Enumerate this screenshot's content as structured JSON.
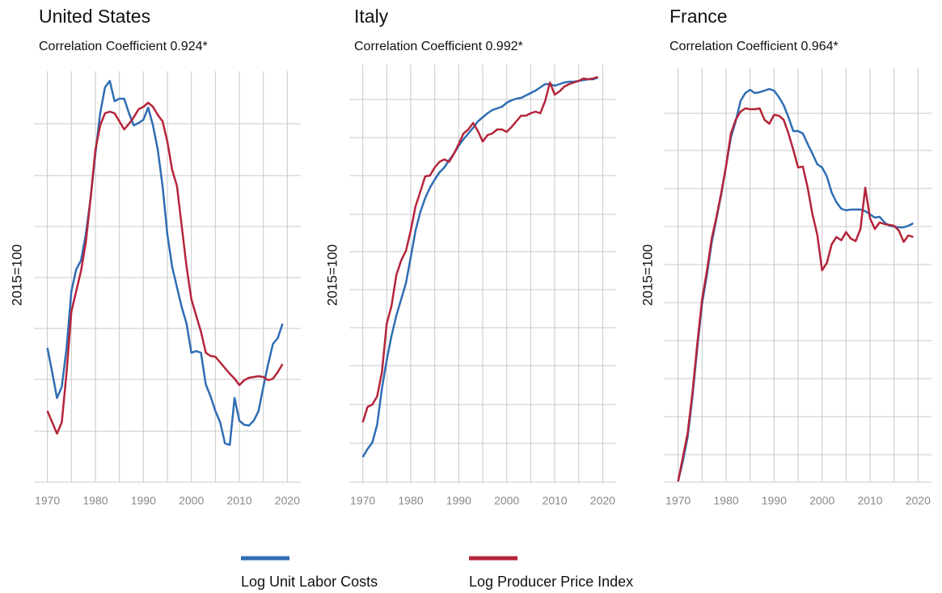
{
  "chart_data": [
    {
      "type": "line",
      "title": "United States",
      "subtitle": "Correlation Coefficient 0.924*",
      "y_label": "2015=100",
      "x": [
        1970,
        1971,
        1972,
        1973,
        1974,
        1975,
        1976,
        1977,
        1978,
        1979,
        1980,
        1981,
        1982,
        1983,
        1984,
        1985,
        1986,
        1987,
        1988,
        1989,
        1990,
        1991,
        1992,
        1993,
        1994,
        1995,
        1996,
        1997,
        1998,
        1999,
        2000,
        2001,
        2002,
        2003,
        2004,
        2005,
        2006,
        2007,
        2008,
        2009,
        2010,
        2011,
        2012,
        2013,
        2014,
        2015,
        2016,
        2017,
        2018,
        2019
      ],
      "series": [
        {
          "name": "Log Unit Labor Costs",
          "color": "#2e6db4",
          "values": [
            166,
            136,
            104,
            118,
            166,
            236,
            263,
            274,
            306,
            351,
            406,
            456,
            488,
            496,
            471,
            474,
            474,
            456,
            441,
            444,
            448,
            463,
            441,
            411,
            366,
            306,
            266,
            241,
            216,
            196,
            160,
            162,
            160,
            121,
            106,
            88,
            74,
            48,
            46,
            104,
            76,
            71,
            70,
            76,
            88,
            118,
            146,
            171,
            178,
            196
          ]
        },
        {
          "name": "Log Producer Price Index",
          "color": "#b5243a",
          "values": [
            88,
            74,
            60,
            74,
            136,
            211,
            236,
            261,
            296,
            351,
            411,
            441,
            456,
            458,
            456,
            446,
            436,
            443,
            451,
            461,
            464,
            469,
            464,
            454,
            446,
            421,
            386,
            366,
            316,
            266,
            226,
            206,
            186,
            160,
            156,
            155,
            148,
            141,
            134,
            128,
            120,
            126,
            129,
            130,
            131,
            130,
            126,
            128,
            136,
            146
          ]
        }
      ],
      "xlim": [
        1967.2,
        2022.8
      ],
      "xticks": [
        1970,
        1980,
        1990,
        2000,
        2010,
        2020
      ],
      "xgrid": [
        1970,
        1975,
        1980,
        1985,
        1990,
        1995,
        2000,
        2005,
        2010,
        2015,
        2020
      ],
      "ylim": [
        0,
        508
      ],
      "yticks": [
        0,
        63,
        127,
        190,
        253,
        316,
        379,
        443
      ],
      "grid": true
    },
    {
      "type": "line",
      "title": "Italy",
      "subtitle": "Correlation Coefficient 0.992*",
      "y_label": "2015=100",
      "x": [
        1970,
        1971,
        1972,
        1973,
        1974,
        1975,
        1976,
        1977,
        1978,
        1979,
        1980,
        1981,
        1982,
        1983,
        1984,
        1985,
        1986,
        1987,
        1988,
        1989,
        1990,
        1991,
        1992,
        1993,
        1994,
        1995,
        1996,
        1997,
        1998,
        1999,
        2000,
        2001,
        2002,
        2003,
        2004,
        2005,
        2006,
        2007,
        2008,
        2009,
        2010,
        2011,
        2012,
        2013,
        2014,
        2015,
        2016,
        2017,
        2018,
        2019
      ],
      "series": [
        {
          "name": "Log Unit Labor Costs",
          "color": "#2e6db4",
          "values": [
            31,
            41,
            49,
            71,
            116,
            151,
            181,
            206,
            226,
            246,
            278,
            311,
            334,
            351,
            364,
            374,
            383,
            389,
            398,
            406,
            416,
            424,
            431,
            438,
            446,
            451,
            456,
            460,
            462,
            464,
            469,
            472,
            474,
            475,
            478,
            481,
            484,
            488,
            492,
            492,
            490,
            492,
            494,
            495,
            495,
            496,
            497,
            498,
            498,
            500
          ]
        },
        {
          "name": "Log Producer Price Index",
          "color": "#b5243a",
          "values": [
            74,
            93,
            96,
            106,
            136,
            196,
            218,
            256,
            274,
            286,
            311,
            341,
            359,
            378,
            379,
            389,
            396,
            399,
            396,
            406,
            418,
            431,
            436,
            444,
            434,
            421,
            429,
            431,
            436,
            436,
            433,
            439,
            446,
            453,
            453,
            456,
            458,
            456,
            471,
            494,
            479,
            483,
            489,
            492,
            494,
            496,
            499,
            498,
            499,
            501
          ]
        }
      ],
      "xlim": [
        1967.2,
        2022.8
      ],
      "xticks": [
        1970,
        1980,
        1990,
        2000,
        2010,
        2020
      ],
      "xgrid": [
        1970,
        1975,
        1980,
        1985,
        1990,
        1995,
        2000,
        2005,
        2010,
        2015,
        2020
      ],
      "ylim": [
        0,
        516
      ],
      "yticks": [
        0,
        48,
        96,
        144,
        191,
        238,
        285,
        331,
        379,
        426,
        473
      ],
      "grid": true
    },
    {
      "type": "line",
      "title": "France",
      "subtitle": "Correlation Coefficient 0.964*",
      "y_label": "2015=100",
      "x": [
        1970,
        1971,
        1972,
        1973,
        1974,
        1975,
        1976,
        1977,
        1978,
        1979,
        1980,
        1981,
        1982,
        1983,
        1984,
        1985,
        1986,
        1987,
        1988,
        1989,
        1990,
        1991,
        1992,
        1993,
        1994,
        1995,
        1996,
        1997,
        1998,
        1999,
        2000,
        2001,
        2002,
        2003,
        2004,
        2005,
        2006,
        2007,
        2008,
        2009,
        2010,
        2011,
        2012,
        2013,
        2014,
        2015,
        2016,
        2017,
        2018,
        2019
      ],
      "series": [
        {
          "name": "Log Unit Labor Costs",
          "color": "#2e6db4",
          "values": [
            1,
            26,
            56,
            106,
            166,
            221,
            256,
            296,
            326,
            356,
            391,
            426,
            446,
            471,
            481,
            485,
            481,
            482,
            484,
            486,
            484,
            476,
            466,
            451,
            434,
            434,
            431,
            418,
            406,
            393,
            389,
            378,
            358,
            346,
            338,
            336,
            337,
            337,
            337,
            335,
            331,
            327,
            328,
            321,
            317,
            316,
            315,
            315,
            317,
            320
          ]
        },
        {
          "name": "Log Producer Price Index",
          "color": "#b5243a",
          "values": [
            1,
            31,
            61,
            111,
            171,
            226,
            261,
            301,
            328,
            358,
            391,
            431,
            448,
            458,
            462,
            461,
            461,
            462,
            448,
            443,
            454,
            453,
            448,
            431,
            411,
            389,
            390,
            364,
            331,
            306,
            262,
            271,
            294,
            303,
            299,
            309,
            301,
            298,
            313,
            364,
            326,
            313,
            321,
            319,
            318,
            317,
            311,
            297,
            305,
            303
          ]
        }
      ],
      "xlim": [
        1967.2,
        2022.8
      ],
      "xticks": [
        1970,
        1980,
        1990,
        2000,
        2010,
        2020
      ],
      "xgrid": [
        1970,
        1975,
        1980,
        1985,
        1990,
        1995,
        2000,
        2005,
        2010,
        2015,
        2020
      ],
      "ylim": [
        0,
        511
      ],
      "yticks": [
        0,
        34,
        81,
        128,
        175,
        222,
        269,
        316,
        363,
        410,
        456
      ],
      "grid": true
    }
  ]
}
